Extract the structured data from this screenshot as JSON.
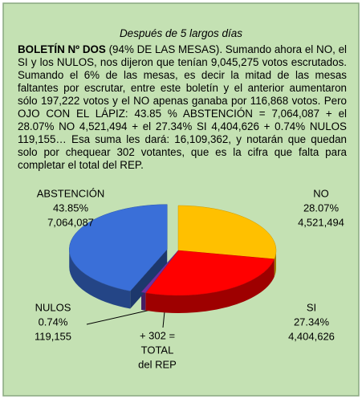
{
  "chart_data": {
    "type": "pie",
    "title": "Después de 5 largos días",
    "lead": "BOLETÍN Nº DOS",
    "body": " (94% DE LAS MESAS). Sumando ahora el NO, el SI y los NULOS, nos dijeron que tenían 9,045,275 votos escrutados. Sumando el 6% de las mesas, es decir la mitad de las mesas faltantes por escrutar, entre este boletín y el anterior aumentaron sólo 197,222 votos  y el NO apenas ganaba por 116,868 votos. Pero OJO CON EL LÁPIZ: 43.85 % ABSTENCIÓN = 7,064,087 + el 28.07% NO 4,521,494 + el 27.34% SI 4,404,626 + 0.74% NULOS 119,155… Esa suma les dará: 16,109,362, y notarán que quedan solo por chequear 302 votantes, que es la cifra que falta para completar el total del REP.",
    "categories": [
      "NO",
      "SI",
      "NULOS",
      "ABSTENCIÓN"
    ],
    "values": [
      28.07,
      27.34,
      0.74,
      43.85
    ],
    "value_labels": [
      "28.07%",
      "27.34%",
      "0.74%",
      "43.85%"
    ],
    "votes": [
      {
        "value": 4521494,
        "label": "4,521,494"
      },
      {
        "value": 4404626,
        "label": "4,404,626"
      },
      {
        "value": 119155,
        "label": "119,155"
      },
      {
        "value": 7064087,
        "label": "7,064,087"
      }
    ],
    "colors": [
      "#ffc000",
      "#ff0000",
      "#7030a0",
      "#3a6fd8"
    ],
    "annotation": [
      "+ 302 =",
      "TOTAL",
      "del REP"
    ]
  }
}
